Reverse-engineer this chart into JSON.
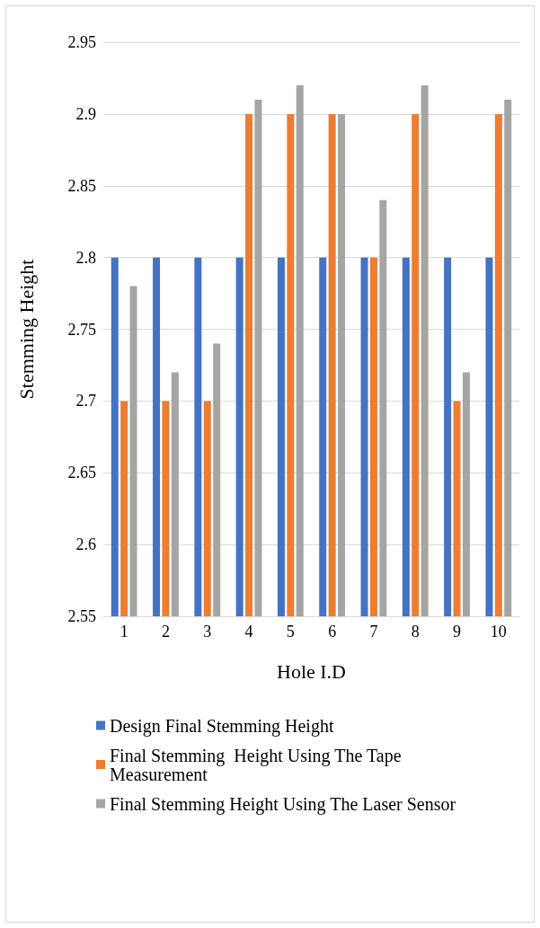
{
  "chart_data": {
    "type": "bar",
    "xlabel": "Hole I.D",
    "ylabel": "Stemming Height",
    "categories": [
      "1",
      "2",
      "3",
      "4",
      "5",
      "6",
      "7",
      "8",
      "9",
      "10"
    ],
    "series": [
      {
        "name": "Design Final Stemming Height",
        "color": "#4472c4",
        "values": [
          2.8,
          2.8,
          2.8,
          2.8,
          2.8,
          2.8,
          2.8,
          2.8,
          2.8,
          2.8
        ]
      },
      {
        "name": "Final Stemming  Height Using The Tape Measurement",
        "color": "#ed7d31",
        "values": [
          2.7,
          2.7,
          2.7,
          2.9,
          2.9,
          2.9,
          2.8,
          2.9,
          2.7,
          2.9
        ]
      },
      {
        "name": "Final Stemming Height Using The Laser Sensor",
        "color": "#a5a5a5",
        "values": [
          2.78,
          2.72,
          2.74,
          2.91,
          2.92,
          2.9,
          2.84,
          2.92,
          2.72,
          2.91
        ]
      }
    ],
    "ylim": [
      2.55,
      2.95
    ],
    "yticks": [
      2.55,
      2.6,
      2.65,
      2.7,
      2.75,
      2.8,
      2.85,
      2.9,
      2.95
    ],
    "grid": "y",
    "legend": "bottom"
  }
}
